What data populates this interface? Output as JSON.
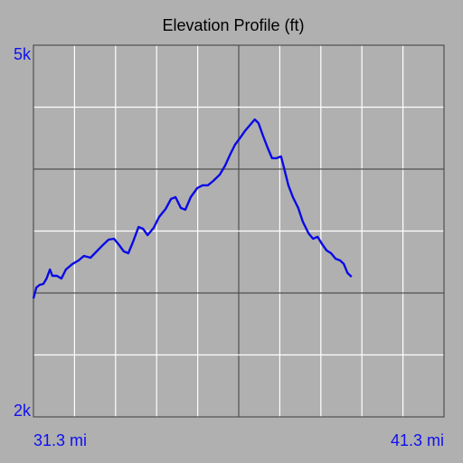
{
  "chart_data": {
    "type": "line",
    "title": "Elevation Profile (ft)",
    "series": [
      {
        "color": "#0a0ae6",
        "x": [
          31.3,
          31.37,
          31.45,
          31.54,
          31.62,
          31.7,
          31.76,
          31.87,
          31.98,
          32.09,
          32.25,
          32.4,
          32.53,
          32.69,
          32.84,
          32.97,
          33.13,
          33.26,
          33.37,
          33.5,
          33.61,
          33.72,
          33.86,
          33.97,
          34.08,
          34.23,
          34.36,
          34.52,
          34.65,
          34.76,
          34.89,
          35.0,
          35.13,
          35.29,
          35.42,
          35.55,
          35.68,
          35.84,
          35.97,
          36.1,
          36.21,
          36.34,
          36.45,
          36.58,
          36.69,
          36.78,
          36.89,
          37.0,
          37.11,
          37.22,
          37.33,
          37.4,
          37.51,
          37.62,
          37.75,
          37.86,
          38.0,
          38.11,
          38.22,
          38.33,
          38.44,
          38.55,
          38.66,
          38.77,
          38.86,
          38.95,
          39.05
        ],
        "values": [
          2956,
          3044,
          3066,
          3073,
          3117,
          3190,
          3139,
          3139,
          3117,
          3190,
          3234,
          3263,
          3299,
          3285,
          3336,
          3380,
          3431,
          3438,
          3394,
          3336,
          3321,
          3409,
          3533,
          3518,
          3467,
          3526,
          3613,
          3679,
          3759,
          3774,
          3686,
          3672,
          3774,
          3847,
          3869,
          3869,
          3905,
          3956,
          4029,
          4124,
          4197,
          4255,
          4307,
          4358,
          4401,
          4372,
          4270,
          4175,
          4088,
          4088,
          4102,
          4015,
          3869,
          3774,
          3686,
          3577,
          3482,
          3438,
          3453,
          3394,
          3343,
          3321,
          3277,
          3263,
          3234,
          3161,
          3131
        ]
      }
    ],
    "xlim": [
      31.3,
      41.3
    ],
    "ylim": [
      2000,
      5000
    ],
    "xticks": [
      {
        "value": 31.3,
        "label": "31.3 mi"
      },
      {
        "value": 41.3,
        "label": "41.3 mi"
      }
    ],
    "yticks": [
      {
        "value": 5000,
        "label": "5k"
      },
      {
        "value": 2000,
        "label": "2k"
      }
    ],
    "xgrid": [
      32.3,
      33.3,
      34.3,
      35.3,
      36.3,
      37.3,
      38.3,
      39.3,
      40.3
    ],
    "xgrid_major": [
      36.3
    ],
    "ygrid": [
      2500,
      3000,
      3500,
      4000,
      4500
    ],
    "ygrid_major": [
      3000,
      4000
    ],
    "grid": true
  }
}
